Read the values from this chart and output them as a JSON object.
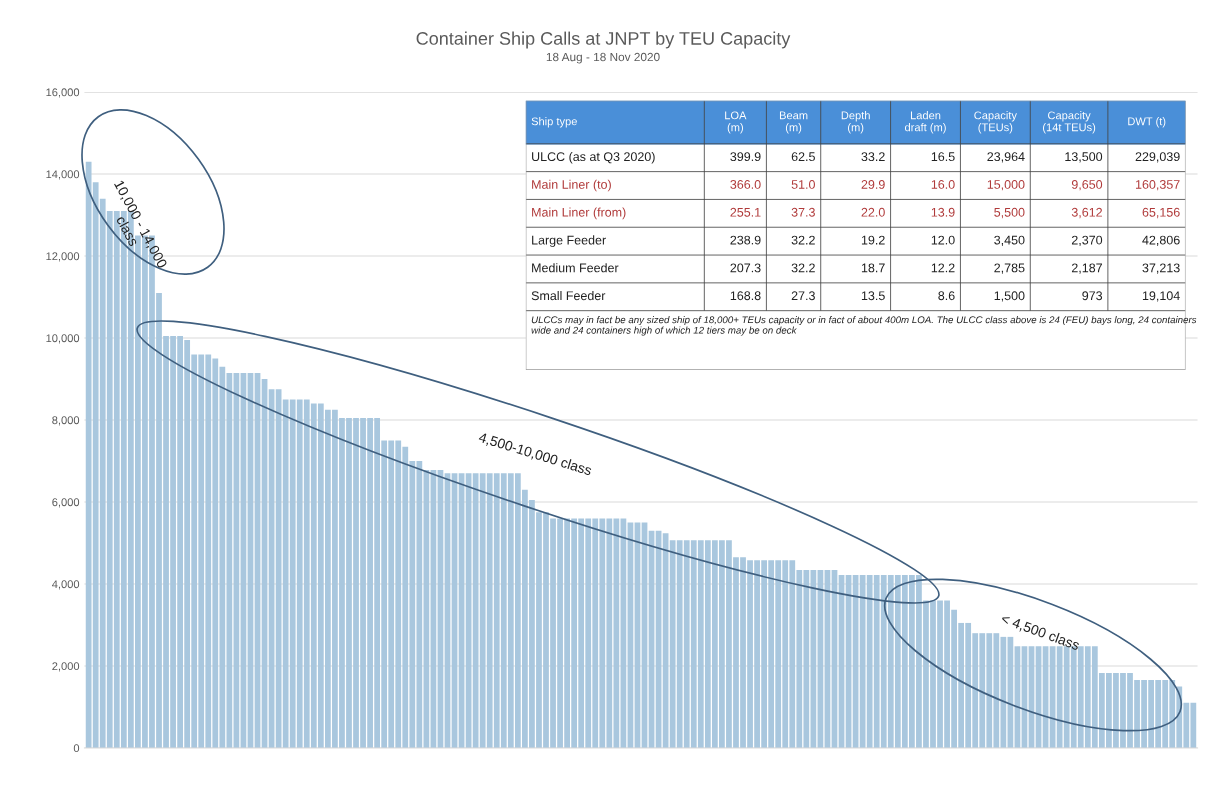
{
  "chart_data": [
    {
      "type": "bar",
      "title": "Container Ship Calls at JNPT by TEU Capacity",
      "subtitle": "18 Aug - 18 Nov 2020",
      "categories": [
        null,
        null,
        null,
        null,
        null,
        null,
        null,
        null,
        null,
        null,
        null,
        null,
        null,
        null,
        null,
        null,
        null,
        null,
        null,
        null,
        null,
        null,
        null,
        null,
        null,
        null,
        null,
        null,
        null,
        null,
        null,
        null,
        null,
        null,
        null,
        null,
        null,
        null,
        null,
        null,
        null,
        null,
        null,
        null,
        null,
        null,
        null,
        null,
        null,
        null,
        null,
        null,
        null,
        null,
        null,
        null,
        null,
        null,
        null,
        null,
        null,
        null,
        null,
        null,
        null,
        null,
        null,
        null,
        null,
        null,
        null,
        null,
        null,
        null,
        null,
        null,
        null,
        null,
        null,
        null,
        null,
        null,
        null,
        null,
        null,
        null,
        null,
        null,
        null,
        null,
        null,
        null,
        null,
        null,
        null,
        null,
        null,
        null,
        null,
        null,
        null,
        null,
        null,
        null,
        null,
        null,
        null,
        null,
        null,
        null,
        null,
        null,
        null,
        null,
        null,
        null,
        null,
        null,
        null,
        null,
        null,
        null,
        null,
        null,
        null,
        null,
        null,
        null,
        null,
        null,
        null,
        null,
        null,
        null,
        null,
        null,
        null,
        null,
        null,
        null,
        null,
        null,
        null,
        null,
        null,
        null,
        null,
        null,
        null,
        null,
        null,
        null,
        null,
        null,
        null,
        null,
        null,
        null
      ],
      "values": [
        14300,
        13800,
        13400,
        13100,
        13100,
        13100,
        13100,
        12500,
        12500,
        12500,
        11100,
        10050,
        10050,
        10050,
        9950,
        9600,
        9600,
        9600,
        9500,
        9300,
        9150,
        9150,
        9150,
        9150,
        9150,
        9000,
        8750,
        8750,
        8500,
        8500,
        8500,
        8500,
        8400,
        8400,
        8250,
        8250,
        8050,
        8050,
        8050,
        8050,
        8050,
        8050,
        7500,
        7500,
        7500,
        7350,
        7000,
        7000,
        6780,
        6780,
        6780,
        6700,
        6700,
        6700,
        6700,
        6700,
        6700,
        6700,
        6700,
        6700,
        6700,
        6700,
        6300,
        6050,
        5750,
        5750,
        5600,
        5600,
        5600,
        5600,
        5600,
        5600,
        5600,
        5600,
        5600,
        5600,
        5600,
        5500,
        5500,
        5500,
        5300,
        5300,
        5240,
        5070,
        5070,
        5070,
        5070,
        5070,
        5070,
        5070,
        5070,
        5070,
        4650,
        4650,
        4580,
        4580,
        4580,
        4580,
        4580,
        4580,
        4580,
        4340,
        4340,
        4340,
        4340,
        4340,
        4340,
        4220,
        4220,
        4220,
        4220,
        4220,
        4220,
        4220,
        4220,
        4220,
        4220,
        4220,
        4220,
        3600,
        3600,
        3600,
        3600,
        3370,
        3050,
        3050,
        2800,
        2800,
        2800,
        2800,
        2710,
        2710,
        2480,
        2480,
        2480,
        2480,
        2480,
        2480,
        2480,
        2480,
        2480,
        2480,
        2480,
        2480,
        1830,
        1830,
        1830,
        1830,
        1830,
        1660,
        1660,
        1660,
        1660,
        1660,
        1660,
        1500,
        1100,
        1100
      ],
      "color": "#a9c7de",
      "ylim": [
        0,
        16000
      ],
      "yticks": [
        {
          "value": 0,
          "label": "0"
        },
        {
          "value": 2000,
          "label": "2,000"
        },
        {
          "value": 4000,
          "label": "4,000"
        },
        {
          "value": 6000,
          "label": "6,000"
        },
        {
          "value": 8000,
          "label": "8,000"
        },
        {
          "value": 10000,
          "label": "10,000"
        },
        {
          "value": 12000,
          "label": "12,000"
        },
        {
          "value": 14000,
          "label": "14,000"
        },
        {
          "value": 16000,
          "label": "16,000"
        }
      ],
      "grid": "y",
      "tick_labels": "y",
      "annotations": [
        "10,000 - 14,000\nclass",
        "4,500-10,000 class",
        "< 4,500 class"
      ]
    },
    {
      "type": "other",
      "categories": [
        "Ship type",
        "LOA\n(m)",
        "Beam\n(m)",
        "Depth\n(m)",
        "Laden\ndraft (m)",
        "Capacity\n(TEUs)",
        "Capacity\n(14t TEUs)",
        "DWT (t)"
      ],
      "cell_labels": [
        [
          "ULCC (as at Q3 2020)",
          "399.9",
          "62.5",
          "33.2",
          "16.5",
          "23,964",
          "13,500",
          "229,039"
        ],
        [
          "Main Liner (to)",
          "366.0",
          "51.0",
          "29.9",
          "16.0",
          "15,000",
          "9,650",
          "160,357"
        ],
        [
          "Main Liner (from)",
          "255.1",
          "37.3",
          "22.0",
          "13.9",
          "5,500",
          "3,612",
          "65,156"
        ],
        [
          "Large Feeder",
          "238.9",
          "32.2",
          "19.2",
          "12.0",
          "3,450",
          "2,370",
          "42,806"
        ],
        [
          "Medium Feeder",
          "207.3",
          "32.2",
          "18.7",
          "12.2",
          "2,785",
          "2,187",
          "37,213"
        ],
        [
          "Small Feeder",
          "168.8",
          "27.3",
          "13.5",
          "8.6",
          "1,500",
          "973",
          "19,104"
        ]
      ],
      "colors": [
        "#222222",
        "#b03a3a",
        "#b03a3a",
        "#222222",
        "#222222",
        "#222222"
      ],
      "color": "#4a8fd8",
      "annotations": [
        "ULCCs may in fact be any sized ship of 18,000+ TEUs capacity or in fact of about 400m LOA. The ULCC class above is 24 (FEU) bays long, 24 containers wide and 24 containers high of which 12 tiers may be on deck"
      ]
    }
  ]
}
